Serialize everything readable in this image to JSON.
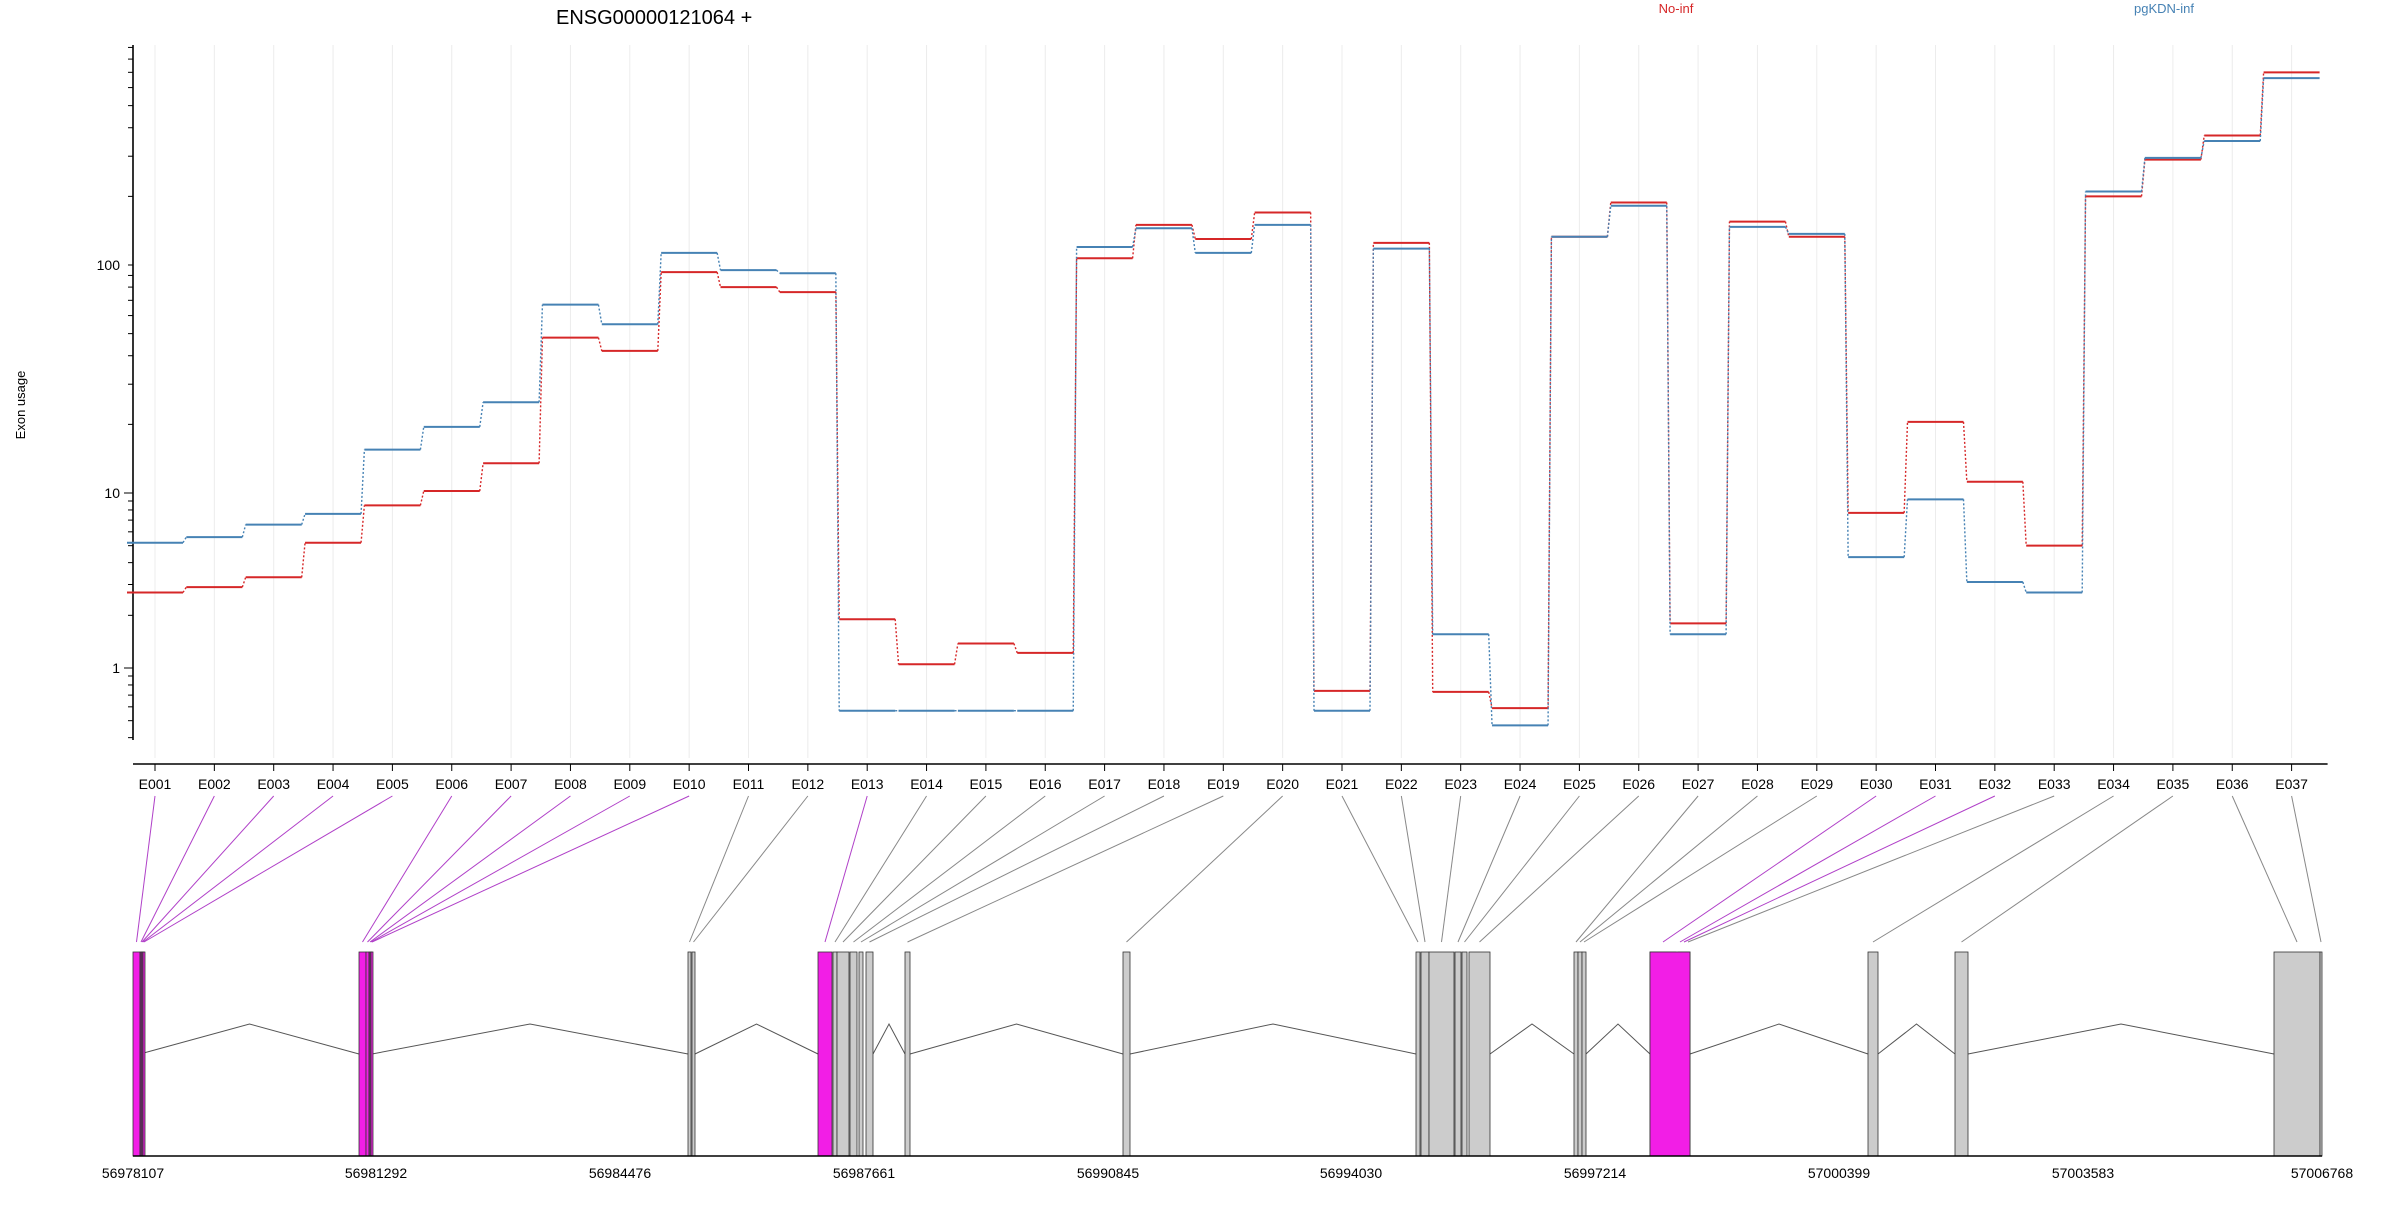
{
  "chart_data": {
    "type": "line",
    "title": "ENSG00000121064 +",
    "ylabel": "Exon usage",
    "yscale": "log",
    "ylim": [
      0.4,
      900
    ],
    "yticks": [
      1,
      10,
      100
    ],
    "ytick_labels": [
      "1",
      "10",
      "100"
    ],
    "categories": [
      "E001",
      "E002",
      "E003",
      "E004",
      "E005",
      "E006",
      "E007",
      "E008",
      "E009",
      "E010",
      "E011",
      "E012",
      "E013",
      "E014",
      "E015",
      "E016",
      "E017",
      "E018",
      "E019",
      "E020",
      "E021",
      "E022",
      "E023",
      "E024",
      "E025",
      "E026",
      "E027",
      "E028",
      "E029",
      "E030",
      "E031",
      "E032",
      "E033",
      "E034",
      "E035",
      "E036",
      "E037"
    ],
    "series": [
      {
        "name": "No-inf",
        "color": "#d62728",
        "values": [
          2.7,
          2.9,
          3.3,
          5.2,
          8.5,
          10.2,
          13.5,
          48,
          42,
          93,
          80,
          76,
          1.9,
          1.05,
          1.38,
          1.22,
          107,
          150,
          130,
          170,
          0.74,
          125,
          0.73,
          0.59,
          133,
          188,
          1.8,
          155,
          133,
          7.7,
          20.5,
          11.2,
          5.0,
          200,
          290,
          370,
          700
        ]
      },
      {
        "name": "pgKDN-inf",
        "color": "#4682b4",
        "values": [
          5.2,
          5.6,
          6.6,
          7.6,
          15.5,
          19.5,
          25,
          67,
          55,
          113,
          95,
          92,
          0.57,
          0.57,
          0.57,
          0.57,
          120,
          145,
          113,
          150,
          0.57,
          118,
          1.56,
          0.47,
          133,
          182,
          1.56,
          147,
          137,
          4.3,
          9.2,
          3.1,
          2.7,
          210,
          295,
          350,
          660
        ]
      }
    ],
    "legend": "top-right",
    "grid": "vertical",
    "gene_model": {
      "coordinate_ticks": [
        "56978107",
        "56981292",
        "56984476",
        "56987661",
        "56990845",
        "56994030",
        "56997214",
        "57000399",
        "57003583",
        "57006768"
      ],
      "exons": [
        {
          "id": "E001",
          "highlight": true
        },
        {
          "id": "E002",
          "highlight": true
        },
        {
          "id": "E003",
          "highlight": true
        },
        {
          "id": "E004",
          "highlight": true
        },
        {
          "id": "E005",
          "highlight": true
        },
        {
          "id": "E006",
          "highlight": true
        },
        {
          "id": "E007",
          "highlight": true
        },
        {
          "id": "E008",
          "highlight": true
        },
        {
          "id": "E009",
          "highlight": true
        },
        {
          "id": "E010",
          "highlight": true
        },
        {
          "id": "E011",
          "highlight": false
        },
        {
          "id": "E012",
          "highlight": false
        },
        {
          "id": "E013",
          "highlight": true
        },
        {
          "id": "E014",
          "highlight": false
        },
        {
          "id": "E015",
          "highlight": false
        },
        {
          "id": "E016",
          "highlight": false
        },
        {
          "id": "E017",
          "highlight": false
        },
        {
          "id": "E018",
          "highlight": false
        },
        {
          "id": "E019",
          "highlight": false
        },
        {
          "id": "E020",
          "highlight": false
        },
        {
          "id": "E021",
          "highlight": false
        },
        {
          "id": "E022",
          "highlight": false
        },
        {
          "id": "E023",
          "highlight": false
        },
        {
          "id": "E024",
          "highlight": false
        },
        {
          "id": "E025",
          "highlight": false
        },
        {
          "id": "E026",
          "highlight": false
        },
        {
          "id": "E027",
          "highlight": false
        },
        {
          "id": "E028",
          "highlight": false
        },
        {
          "id": "E029",
          "highlight": false
        },
        {
          "id": "E030",
          "highlight": true
        },
        {
          "id": "E031",
          "highlight": true
        },
        {
          "id": "E032",
          "highlight": true
        },
        {
          "id": "E033",
          "highlight": false
        },
        {
          "id": "E034",
          "highlight": false
        },
        {
          "id": "E035",
          "highlight": false
        },
        {
          "id": "E036",
          "highlight": false
        },
        {
          "id": "E037",
          "highlight": false
        }
      ],
      "highlight_color": "#f21ee6",
      "exon_color": "#cccccc"
    }
  }
}
